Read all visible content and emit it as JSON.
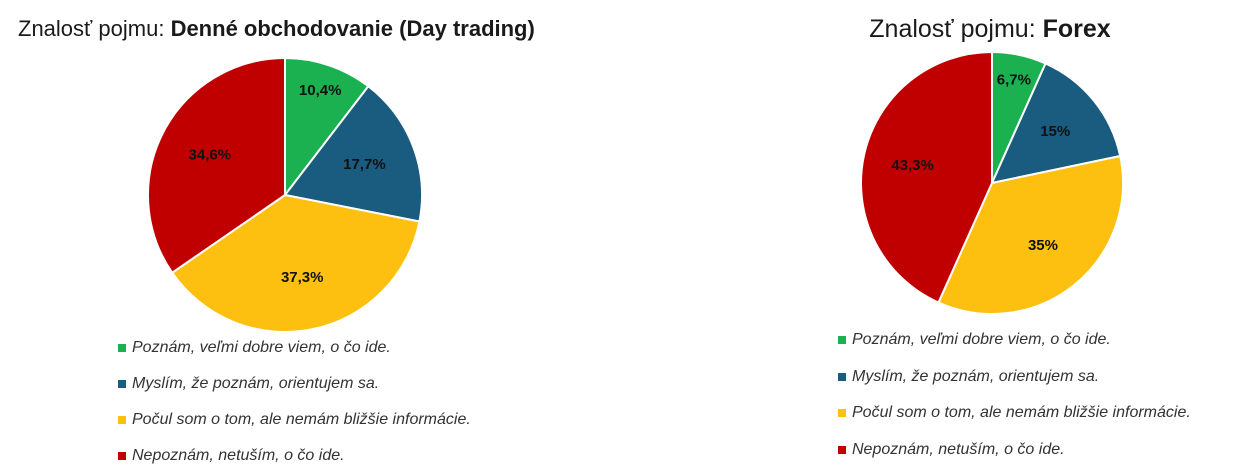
{
  "chart_data": [
    {
      "type": "pie",
      "title_prefix": "Znalosť pojmu:",
      "title": "Denné obchodovanie (Day trading)",
      "categories": [
        "Poznám, veľmi dobre viem, o čo ide.",
        "Myslím, že poznám, orientujem sa.",
        "Počul som o tom, ale nemám bližšie informácie.",
        "Nepoznám, netuším, o čo ide."
      ],
      "values": [
        10.4,
        17.7,
        37.3,
        34.6
      ],
      "value_labels": [
        "10,4%",
        "17,7%",
        "37,3%",
        "34,6%"
      ],
      "colors": [
        "#1bb150",
        "#1a5b80",
        "#fdc010",
        "#c00000"
      ]
    },
    {
      "type": "pie",
      "title_prefix": "Znalosť pojmu:",
      "title": "Forex",
      "categories": [
        "Poznám, veľmi dobre viem, o čo ide.",
        "Myslím, že poznám, orientujem sa.",
        "Počul som o tom, ale nemám bližšie informácie.",
        "Nepoznám, netuším, o čo ide."
      ],
      "values": [
        6.7,
        15,
        35,
        43.3
      ],
      "value_labels": [
        "6,7%",
        "15%",
        "35%",
        "43,3%"
      ],
      "colors": [
        "#1bb150",
        "#1a5b80",
        "#fdc010",
        "#c00000"
      ]
    }
  ]
}
